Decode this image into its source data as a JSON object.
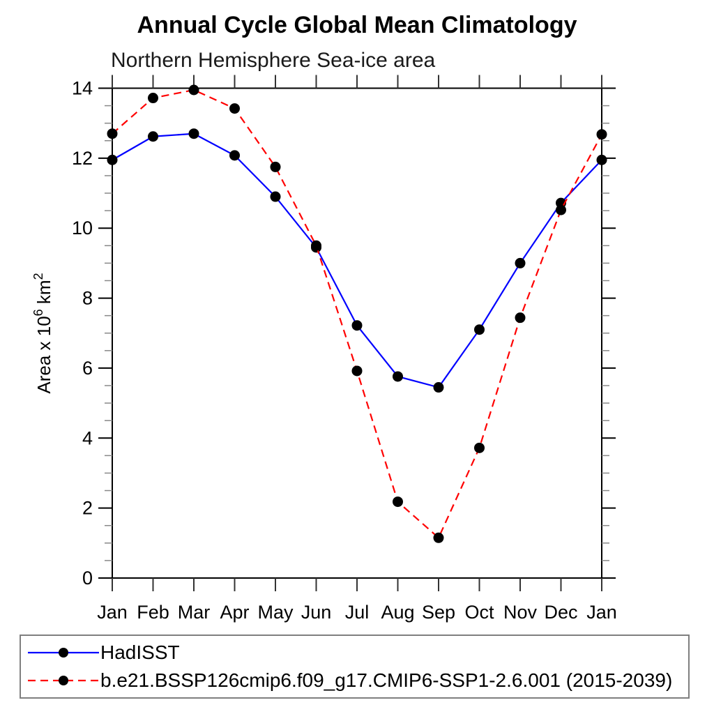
{
  "chart_data": {
    "type": "line",
    "title": "Annual Cycle Global Mean Climatology",
    "subtitle": "Northern Hemisphere Sea-ice area",
    "ylabel": "Area x 10⁶ km²",
    "ylabel_rich": [
      {
        "text": "Area x 10"
      },
      {
        "text": "6",
        "sup": true
      },
      {
        "text": " km"
      },
      {
        "text": "2",
        "sup": true
      }
    ],
    "x_categories": [
      "Jan",
      "Feb",
      "Mar",
      "Apr",
      "May",
      "Jun",
      "Jul",
      "Aug",
      "Sep",
      "Oct",
      "Nov",
      "Dec",
      "Jan"
    ],
    "ylim": [
      0,
      14
    ],
    "ytick_major": [
      0,
      2,
      4,
      6,
      8,
      10,
      12,
      14
    ],
    "ytick_minor_step": 0.5,
    "grid": false,
    "legend_position": "bottom-left",
    "series": [
      {
        "name": "HadISST",
        "line_color": "#0000ff",
        "line_style": "solid",
        "marker": "filled-circle",
        "marker_color": "#000000",
        "values": [
          11.95,
          12.62,
          12.7,
          12.08,
          10.9,
          9.45,
          7.22,
          5.76,
          5.45,
          7.1,
          9.0,
          10.72,
          11.95
        ]
      },
      {
        "name": "b.e21.BSSP126cmip6.f09_g17.CMIP6-SSP1-2.6.001 (2015-2039)",
        "line_color": "#ff0000",
        "line_style": "dashed",
        "marker": "filled-circle",
        "marker_color": "#000000",
        "values": [
          12.7,
          13.72,
          13.95,
          13.42,
          11.75,
          9.5,
          5.92,
          2.18,
          1.15,
          3.72,
          7.44,
          10.52,
          12.68
        ]
      }
    ]
  }
}
